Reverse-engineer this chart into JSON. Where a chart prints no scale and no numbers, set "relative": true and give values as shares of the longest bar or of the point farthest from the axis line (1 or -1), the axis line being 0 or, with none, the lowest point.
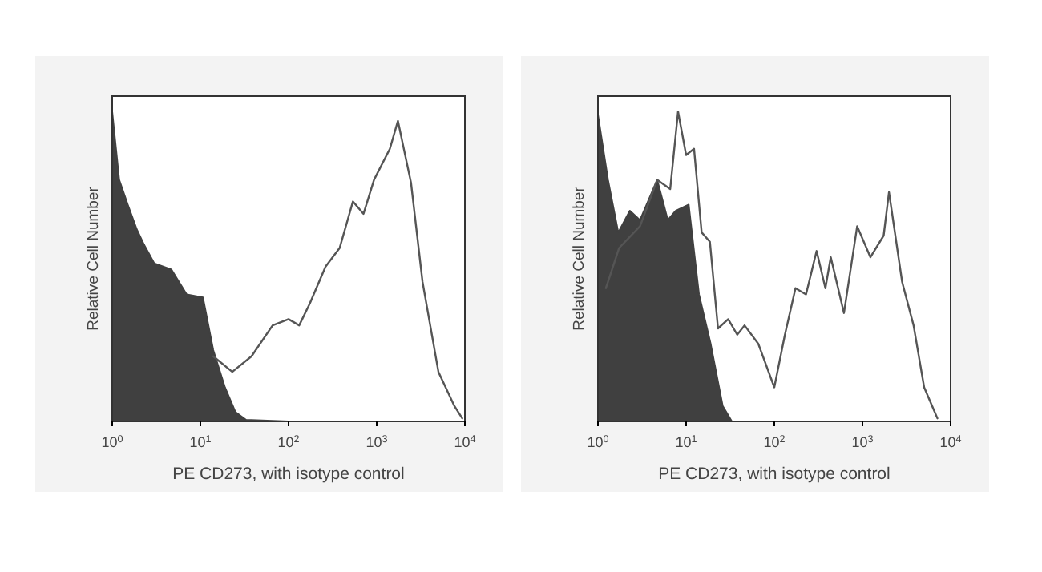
{
  "chart_data": [
    {
      "type": "line",
      "xlabel": "PE CD273, with isotype control",
      "ylabel": "Relative Cell Number",
      "relative": true,
      "log": "x",
      "xlim": [
        1,
        10000
      ],
      "xticks": [
        {
          "value": 1,
          "label": "10$^{0}$"
        },
        {
          "value": 10,
          "label": "10$^{1}$"
        },
        {
          "value": 100,
          "label": "10$^{2}$"
        },
        {
          "value": 1000,
          "label": "10$^{3}$"
        },
        {
          "value": 10000,
          "label": "10$^{4}$"
        }
      ],
      "grid": false,
      "series": [
        {
          "type": "area",
          "color": "#404040",
          "x": [
            1,
            1.2,
            1.5,
            1.9,
            2.3,
            3,
            4.7,
            7,
            10.7,
            14,
            19,
            25,
            33,
            100,
            10000
          ],
          "values": [
            1.0,
            0.78,
            0.7,
            0.62,
            0.57,
            0.51,
            0.49,
            0.41,
            0.4,
            0.23,
            0.11,
            0.03,
            0.005,
            0,
            0
          ]
        },
        {
          "color": "#555555",
          "x": [
            14,
            23,
            38,
            66,
            100,
            132,
            174,
            263,
            380,
            537,
            708,
            933,
            1410,
            1740,
            2450,
            3310,
            5010,
            7590,
            9330
          ],
          "values": [
            0.21,
            0.16,
            0.21,
            0.31,
            0.33,
            0.31,
            0.38,
            0.5,
            0.56,
            0.71,
            0.67,
            0.78,
            0.88,
            0.97,
            0.77,
            0.45,
            0.16,
            0.05,
            0.01
          ]
        }
      ]
    },
    {
      "type": "line",
      "xlabel": "PE CD273, with isotype control",
      "ylabel": "Relative Cell Number",
      "relative": true,
      "log": "x",
      "xlim": [
        1,
        10000
      ],
      "xticks": [
        {
          "value": 1,
          "label": "10$^{0}$"
        },
        {
          "value": 10,
          "label": "10$^{1}$"
        },
        {
          "value": 100,
          "label": "10$^{2}$"
        },
        {
          "value": 1000,
          "label": "10$^{3}$"
        },
        {
          "value": 10000,
          "label": "10$^{4}$"
        }
      ],
      "grid": false,
      "series": [
        {
          "type": "area",
          "color": "#404040",
          "x": [
            1,
            1.3,
            1.7,
            2.3,
            3,
            4.7,
            6.2,
            7.6,
            10.7,
            14,
            19,
            26,
            33,
            10000
          ],
          "values": [
            0.99,
            0.78,
            0.61,
            0.68,
            0.65,
            0.78,
            0.65,
            0.68,
            0.7,
            0.41,
            0.25,
            0.05,
            0,
            0
          ]
        },
        {
          "color": "#555555",
          "x": [
            1.23,
            1.74,
            3,
            4.7,
            6.6,
            8.1,
            10,
            12.3,
            15,
            18.6,
            23,
            30,
            38,
            46,
            66,
            100,
            132,
            174,
            229,
            302,
            380,
            437,
            617,
            871,
            1230,
            1740,
            2000,
            2820,
            3800,
            5010,
            7080
          ],
          "values": [
            0.43,
            0.56,
            0.63,
            0.78,
            0.75,
            1.0,
            0.86,
            0.88,
            0.61,
            0.58,
            0.3,
            0.33,
            0.28,
            0.31,
            0.25,
            0.11,
            0.28,
            0.43,
            0.41,
            0.55,
            0.43,
            0.53,
            0.35,
            0.63,
            0.53,
            0.6,
            0.74,
            0.45,
            0.31,
            0.11,
            0.01
          ]
        }
      ]
    }
  ]
}
